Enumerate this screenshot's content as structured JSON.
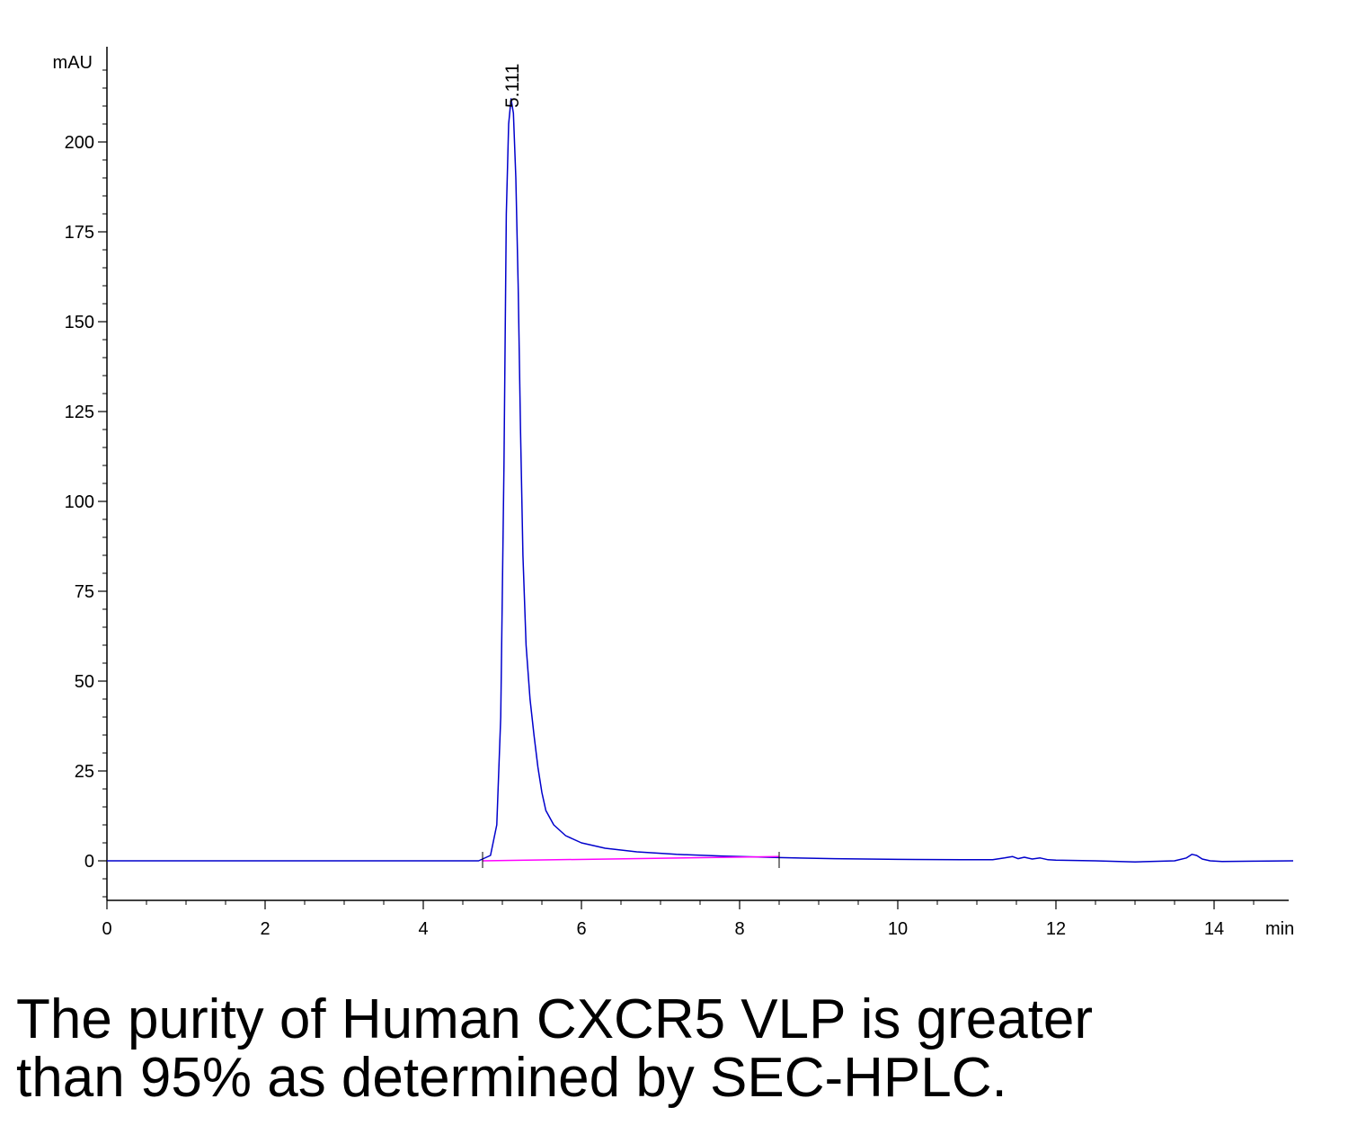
{
  "chart_data": {
    "type": "line",
    "title": "",
    "xlabel": "",
    "ylabel": "",
    "x_unit": "min",
    "y_unit": "mAU",
    "xlim": [
      0,
      15
    ],
    "ylim": [
      -11,
      225
    ],
    "x_ticks": [
      0,
      2,
      4,
      6,
      8,
      10,
      12,
      14
    ],
    "y_ticks": [
      0,
      25,
      50,
      75,
      100,
      125,
      150,
      175,
      200
    ],
    "grid": false,
    "legend": "none",
    "series": [
      {
        "color": "#0000cc",
        "x": [
          0,
          2,
          4,
          4.7,
          4.85,
          4.93,
          4.98,
          5.02,
          5.05,
          5.08,
          5.11,
          5.14,
          5.17,
          5.2,
          5.23,
          5.26,
          5.3,
          5.35,
          5.4,
          5.45,
          5.5,
          5.55,
          5.65,
          5.8,
          6.0,
          6.3,
          6.7,
          7.2,
          7.8,
          8.5,
          9.2,
          10.0,
          10.8,
          11.2,
          11.35,
          11.45,
          11.52,
          11.6,
          11.7,
          11.8,
          11.9,
          12.0,
          12.5,
          13.0,
          13.5,
          13.65,
          13.72,
          13.78,
          13.85,
          13.95,
          14.1,
          14.5,
          15.0
        ],
        "y": [
          0,
          0,
          0,
          0,
          1.5,
          10,
          40,
          110,
          180,
          205,
          212,
          208,
          190,
          160,
          120,
          85,
          60,
          45,
          35,
          26,
          19,
          14,
          10,
          7,
          5,
          3.5,
          2.5,
          1.8,
          1.3,
          0.9,
          0.6,
          0.4,
          0.3,
          0.3,
          0.8,
          1.2,
          0.6,
          1.0,
          0.5,
          0.8,
          0.3,
          0.2,
          0,
          -0.3,
          0,
          0.8,
          1.8,
          1.5,
          0.5,
          0,
          -0.2,
          -0.1,
          0
        ]
      },
      {
        "color": "#ff00ff",
        "x": [
          4.75,
          8.5
        ],
        "y": [
          0,
          1.2
        ]
      }
    ],
    "annotations": [
      {
        "text": "5.111",
        "x": 5.111,
        "y": 212
      }
    ],
    "integration_marks_x": [
      4.75,
      8.5
    ]
  },
  "caption": {
    "line1": "The purity of Human CXCR5 VLP is greater",
    "line2": "than 95% as determined by SEC-HPLC."
  }
}
